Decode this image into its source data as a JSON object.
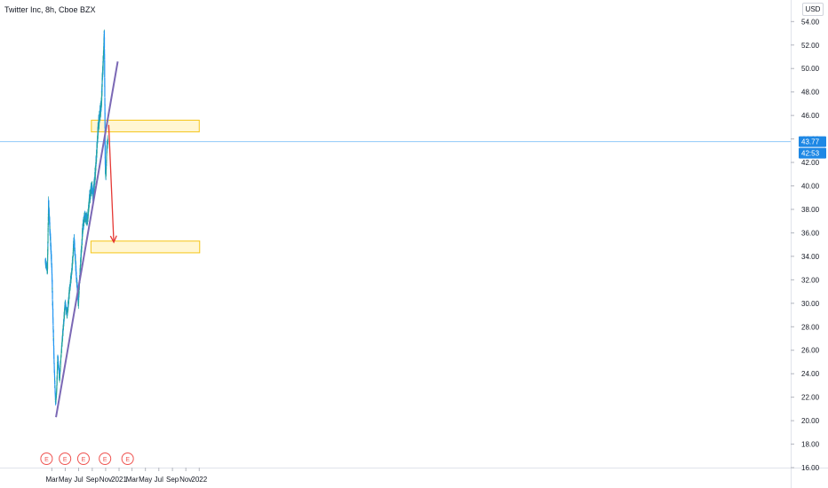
{
  "header": {
    "symbol_title": "Twitter Inc, 8h, Cboe BZX",
    "currency": "USD"
  },
  "price_axis": {
    "ticks": [
      "54.00",
      "52.00",
      "50.00",
      "48.00",
      "46.00",
      "44.00",
      "42.00",
      "40.00",
      "38.00",
      "36.00",
      "34.00",
      "32.00",
      "30.00",
      "28.00",
      "26.00",
      "24.00",
      "22.00",
      "20.00",
      "18.00",
      "16.00"
    ],
    "last_price_label": "43.77",
    "countdown_label": "42:53"
  },
  "time_axis": {
    "labels": [
      "Mar",
      "May",
      "Jul",
      "Sep",
      "Nov",
      "2021",
      "Mar",
      "May",
      "Jul",
      "Sep",
      "Nov",
      "2022"
    ]
  },
  "earnings_markers": [
    "E",
    "E",
    "E",
    "E",
    "E"
  ],
  "colors": {
    "up": "#26a69a",
    "down": "#2196f3",
    "trendline": "#7b68b5",
    "zone_fill": "#fff3c4",
    "zone_border": "#f5c518",
    "arrow": "#e53935",
    "price_line": "#90caf9",
    "price_label_bg": "#1e88e5"
  },
  "chart_data": {
    "type": "candlestick",
    "title": "Twitter Inc, 8h, Cboe BZX",
    "currency": "USD",
    "ylim": [
      16,
      54.5
    ],
    "x_range": [
      "2020-02-01",
      "2022-01-10"
    ],
    "last_price": 43.77,
    "price_path": [
      [
        "2020-02-01",
        33.5
      ],
      [
        "2020-02-10",
        32.8
      ],
      [
        "2020-02-15",
        38.5
      ],
      [
        "2020-02-22",
        36.0
      ],
      [
        "2020-03-01",
        33.0
      ],
      [
        "2020-03-06",
        29.0
      ],
      [
        "2020-03-12",
        24.5
      ],
      [
        "2020-03-18",
        21.5
      ],
      [
        "2020-03-23",
        22.5
      ],
      [
        "2020-03-28",
        25.5
      ],
      [
        "2020-04-05",
        23.5
      ],
      [
        "2020-04-12",
        25.5
      ],
      [
        "2020-04-20",
        27.5
      ],
      [
        "2020-05-01",
        30.0
      ],
      [
        "2020-05-10",
        29.0
      ],
      [
        "2020-05-20",
        31.0
      ],
      [
        "2020-06-01",
        33.0
      ],
      [
        "2020-06-10",
        35.5
      ],
      [
        "2020-06-20",
        32.5
      ],
      [
        "2020-06-30",
        30.0
      ],
      [
        "2020-07-10",
        33.5
      ],
      [
        "2020-07-20",
        36.5
      ],
      [
        "2020-07-30",
        37.5
      ],
      [
        "2020-08-10",
        37.0
      ],
      [
        "2020-08-20",
        39.0
      ],
      [
        "2020-08-30",
        40.0
      ],
      [
        "2020-09-05",
        39.0
      ],
      [
        "2020-09-12",
        40.5
      ],
      [
        "2020-09-20",
        42.5
      ],
      [
        "2020-09-28",
        45.0
      ],
      [
        "2020-10-05",
        46.0
      ],
      [
        "2020-10-12",
        47.0
      ],
      [
        "2020-10-18",
        49.5
      ],
      [
        "2020-10-22",
        51.0
      ],
      [
        "2020-10-26",
        53.0
      ],
      [
        "2020-10-28",
        48.0
      ],
      [
        "2020-10-30",
        41.5
      ],
      [
        "2020-11-02",
        41.0
      ],
      [
        "2020-11-06",
        43.0
      ],
      [
        "2020-11-10",
        43.8
      ]
    ],
    "earnings_dates": [
      "2020-02-06",
      "2020-04-30",
      "2020-07-23",
      "2020-10-29",
      "2021-02-09"
    ],
    "trendline": {
      "start": [
        "2020-03-20",
        20.3
      ],
      "end": [
        "2020-12-26",
        50.6
      ]
    },
    "resistance_zone": {
      "x_start": "2020-08-28",
      "x_end": "2022-01-01",
      "y_low": 44.6,
      "y_high": 45.6
    },
    "support_zone": {
      "x_start": "2020-08-26",
      "x_end": "2022-01-03",
      "y_low": 34.3,
      "y_high": 35.3
    },
    "projection_arrow": {
      "start": [
        "2020-11-15",
        45.2
      ],
      "end": [
        "2020-12-08",
        35.2
      ]
    },
    "grid": false,
    "legend": "none"
  }
}
